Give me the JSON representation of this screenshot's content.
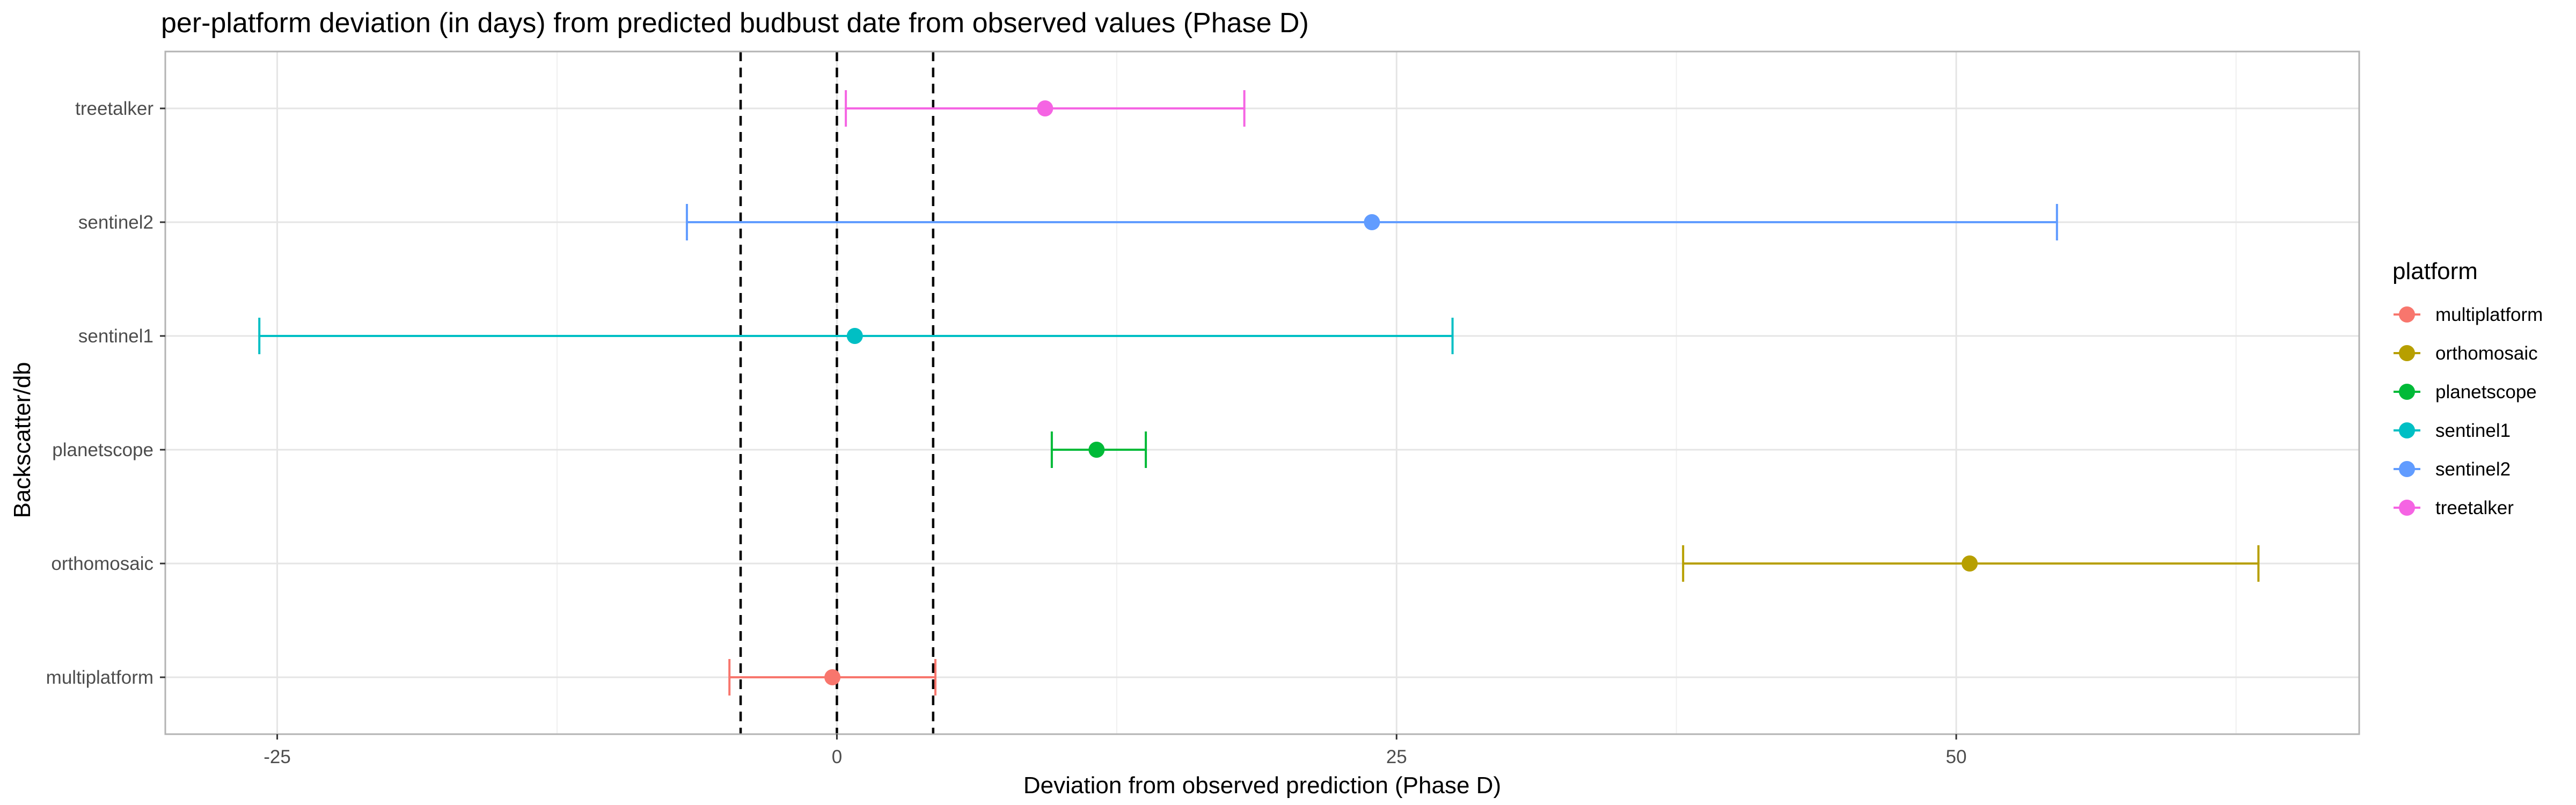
{
  "chart_data": {
    "type": "scatter",
    "title": "per-platform deviation (in days) from predicted budbust date from observed values (Phase D)",
    "xlabel": "Deviation from observed prediction (Phase D)",
    "ylabel": "Backscatter/db",
    "xlim": [
      -30,
      68
    ],
    "x_ticks": [
      -25,
      0,
      25,
      50
    ],
    "x_tick_labels": [
      "-25",
      "0",
      "25",
      "50"
    ],
    "categories": [
      "multiplatform",
      "orthomosaic",
      "planetscope",
      "sentinel1",
      "sentinel2",
      "treetalker"
    ],
    "grid": true,
    "reference_lines": [
      {
        "x": -4.3,
        "style": "dashed"
      },
      {
        "x": 0,
        "style": "dashed"
      },
      {
        "x": 4.3,
        "style": "dashed"
      }
    ],
    "series": [
      {
        "name": "multiplatform",
        "category": "multiplatform",
        "color": "#F8766D",
        "estimate": -0.2,
        "lower": -4.8,
        "upper": 4.4
      },
      {
        "name": "orthomosaic",
        "category": "orthomosaic",
        "color": "#B79F00",
        "estimate": 50.6,
        "lower": 37.8,
        "upper": 63.5
      },
      {
        "name": "planetscope",
        "category": "planetscope",
        "color": "#00BA38",
        "estimate": 11.6,
        "lower": 9.6,
        "upper": 13.8
      },
      {
        "name": "sentinel1",
        "category": "sentinel1",
        "color": "#00BFC4",
        "estimate": 0.8,
        "lower": -25.8,
        "upper": 27.5
      },
      {
        "name": "sentinel2",
        "category": "sentinel2",
        "color": "#619CFF",
        "estimate": 23.9,
        "lower": -6.7,
        "upper": 54.5
      },
      {
        "name": "treetalker",
        "category": "treetalker",
        "color": "#F564E3",
        "estimate": 9.3,
        "lower": 0.4,
        "upper": 18.2
      }
    ],
    "legend": {
      "title": "platform",
      "position": "right"
    }
  }
}
